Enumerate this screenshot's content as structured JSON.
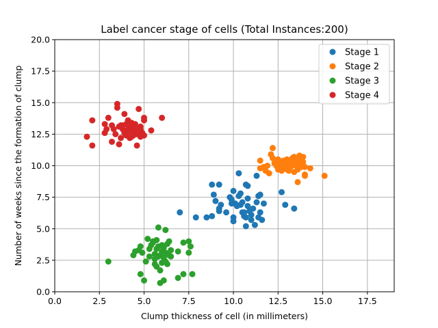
{
  "chart_data": {
    "type": "scatter",
    "title": "Label cancer stage of cells (Total Instances:200)",
    "xlabel": "Clump thickness of cell (in millimeters)",
    "ylabel": "Number of weeks since the formation of clump",
    "xlim": [
      0,
      19
    ],
    "ylim": [
      0,
      20
    ],
    "xticks": [
      0.0,
      2.5,
      5.0,
      7.5,
      10.0,
      12.5,
      15.0,
      17.5
    ],
    "xtick_labels": [
      "0.0",
      "2.5",
      "5.0",
      "7.5",
      "10.0",
      "12.5",
      "15.0",
      "17.5"
    ],
    "yticks": [
      0.0,
      2.5,
      5.0,
      7.5,
      10.0,
      12.5,
      15.0,
      17.5,
      20.0
    ],
    "ytick_labels": [
      "0.0",
      "2.5",
      "5.0",
      "7.5",
      "10.0",
      "12.5",
      "15.0",
      "17.5",
      "20.0"
    ],
    "grid": true,
    "legend_position": "top-right",
    "series": [
      {
        "name": "Stage 1",
        "color": "#1f77b4",
        "points": [
          [
            7.0,
            6.3
          ],
          [
            7.9,
            5.9
          ],
          [
            8.5,
            5.9
          ],
          [
            8.8,
            6.0
          ],
          [
            8.8,
            8.5
          ],
          [
            9.2,
            8.5
          ],
          [
            8.9,
            7.7
          ],
          [
            9.0,
            7.2
          ],
          [
            9.2,
            6.6
          ],
          [
            9.3,
            6.9
          ],
          [
            9.2,
            6.4
          ],
          [
            9.6,
            6.3
          ],
          [
            9.8,
            7.5
          ],
          [
            9.9,
            7.3
          ],
          [
            9.9,
            7.0
          ],
          [
            10.0,
            8.0
          ],
          [
            10.0,
            5.9
          ],
          [
            10.0,
            5.6
          ],
          [
            10.1,
            7.0
          ],
          [
            10.3,
            7.6
          ],
          [
            10.3,
            9.4
          ],
          [
            10.4,
            7.8
          ],
          [
            10.4,
            6.9
          ],
          [
            10.5,
            6.3
          ],
          [
            10.6,
            6.3
          ],
          [
            10.6,
            6.0
          ],
          [
            10.7,
            5.9
          ],
          [
            10.7,
            5.2
          ],
          [
            10.7,
            8.5
          ],
          [
            10.8,
            8.4
          ],
          [
            10.8,
            7.4
          ],
          [
            10.8,
            6.8
          ],
          [
            10.9,
            6.4
          ],
          [
            11.0,
            5.7
          ],
          [
            11.0,
            6.1
          ],
          [
            11.1,
            6.6
          ],
          [
            11.2,
            5.3
          ],
          [
            11.3,
            9.2
          ],
          [
            11.3,
            7.1
          ],
          [
            11.4,
            7.6
          ],
          [
            11.5,
            7.7
          ],
          [
            11.5,
            6.3
          ],
          [
            11.4,
            5.9
          ],
          [
            11.7,
            7.0
          ],
          [
            12.7,
            7.9
          ],
          [
            12.9,
            6.9
          ],
          [
            13.4,
            6.6
          ],
          [
            10.5,
            7.1
          ],
          [
            10.2,
            6.8
          ],
          [
            11.6,
            5.7
          ]
        ]
      },
      {
        "name": "Stage 2",
        "color": "#ff7f0e",
        "points": [
          [
            11.5,
            10.4
          ],
          [
            11.5,
            9.8
          ],
          [
            11.7,
            9.9
          ],
          [
            11.8,
            9.6
          ],
          [
            12.0,
            9.4
          ],
          [
            12.1,
            10.9
          ],
          [
            12.2,
            11.4
          ],
          [
            12.3,
            10.2
          ],
          [
            12.4,
            10.0
          ],
          [
            12.5,
            9.7
          ],
          [
            12.6,
            10.3
          ],
          [
            12.7,
            10.1
          ],
          [
            12.7,
            9.6
          ],
          [
            12.8,
            9.9
          ],
          [
            12.9,
            10.2
          ],
          [
            13.0,
            10.5
          ],
          [
            13.0,
            9.7
          ],
          [
            13.1,
            10.0
          ],
          [
            13.2,
            10.4
          ],
          [
            13.2,
            9.9
          ],
          [
            13.3,
            10.6
          ],
          [
            13.4,
            10.2
          ],
          [
            13.4,
            9.5
          ],
          [
            13.5,
            10.6
          ],
          [
            13.6,
            10.3
          ],
          [
            13.6,
            9.7
          ],
          [
            13.7,
            10.8
          ],
          [
            13.7,
            10.1
          ],
          [
            13.8,
            10.5
          ],
          [
            13.8,
            9.9
          ],
          [
            13.9,
            10.7
          ],
          [
            13.9,
            10.3
          ],
          [
            14.0,
            9.9
          ],
          [
            14.0,
            9.3
          ],
          [
            14.0,
            9.2
          ],
          [
            14.3,
            9.8
          ],
          [
            15.1,
            9.2
          ],
          [
            13.6,
            8.7
          ],
          [
            12.4,
            10.3
          ],
          [
            12.9,
            10.0
          ],
          [
            13.2,
            10.1
          ],
          [
            12.6,
            9.8
          ],
          [
            13.0,
            10.3
          ],
          [
            13.5,
            10.0
          ],
          [
            12.2,
            10.6
          ],
          [
            11.9,
            10.0
          ],
          [
            13.4,
            10.7
          ],
          [
            12.8,
            10.4
          ],
          [
            13.1,
            9.6
          ],
          [
            12.5,
            10.5
          ]
        ]
      },
      {
        "name": "Stage 3",
        "color": "#2ca02c",
        "points": [
          [
            3.0,
            2.4
          ],
          [
            4.4,
            2.9
          ],
          [
            4.5,
            3.2
          ],
          [
            4.7,
            3.3
          ],
          [
            4.8,
            3.6
          ],
          [
            4.8,
            1.4
          ],
          [
            4.9,
            3.1
          ],
          [
            5.0,
            0.9
          ],
          [
            5.1,
            2.4
          ],
          [
            5.2,
            4.2
          ],
          [
            5.3,
            2.8
          ],
          [
            5.3,
            3.4
          ],
          [
            5.5,
            4.0
          ],
          [
            5.5,
            3.9
          ],
          [
            5.6,
            2.2
          ],
          [
            5.6,
            3.0
          ],
          [
            5.7,
            2.0
          ],
          [
            5.7,
            3.4
          ],
          [
            5.7,
            4.1
          ],
          [
            5.8,
            5.1
          ],
          [
            5.8,
            3.6
          ],
          [
            5.8,
            2.8
          ],
          [
            5.9,
            1.7
          ],
          [
            5.9,
            0.7
          ],
          [
            6.0,
            2.3
          ],
          [
            6.0,
            3.2
          ],
          [
            6.0,
            3.7
          ],
          [
            6.1,
            0.9
          ],
          [
            6.1,
            2.7
          ],
          [
            6.2,
            4.9
          ],
          [
            6.2,
            3.1
          ],
          [
            6.3,
            2.2
          ],
          [
            6.3,
            3.8
          ],
          [
            6.4,
            4.0
          ],
          [
            6.4,
            2.9
          ],
          [
            6.5,
            2.8
          ],
          [
            6.9,
            3.2
          ],
          [
            6.9,
            1.1
          ],
          [
            7.2,
            3.9
          ],
          [
            7.2,
            1.4
          ],
          [
            7.5,
            4.0
          ],
          [
            7.5,
            3.1
          ],
          [
            7.6,
            3.6
          ],
          [
            7.7,
            1.4
          ],
          [
            5.4,
            3.7
          ],
          [
            6.1,
            3.5
          ],
          [
            5.6,
            2.6
          ],
          [
            6.2,
            2.4
          ],
          [
            5.9,
            2.9
          ],
          [
            6.5,
            3.3
          ]
        ]
      },
      {
        "name": "Stage 4",
        "color": "#d62728",
        "points": [
          [
            1.8,
            12.3
          ],
          [
            2.1,
            13.6
          ],
          [
            2.1,
            11.6
          ],
          [
            2.8,
            13.3
          ],
          [
            2.8,
            12.6
          ],
          [
            2.9,
            12.9
          ],
          [
            3.0,
            13.8
          ],
          [
            3.2,
            13.2
          ],
          [
            3.2,
            11.9
          ],
          [
            3.3,
            12.9
          ],
          [
            3.4,
            12.5
          ],
          [
            3.5,
            14.9
          ],
          [
            3.5,
            14.6
          ],
          [
            3.6,
            13.1
          ],
          [
            3.6,
            11.7
          ],
          [
            3.7,
            12.2
          ],
          [
            3.8,
            12.9
          ],
          [
            3.8,
            13.2
          ],
          [
            3.9,
            14.1
          ],
          [
            3.9,
            12.8
          ],
          [
            4.0,
            13.3
          ],
          [
            4.0,
            12.4
          ],
          [
            4.1,
            13.6
          ],
          [
            4.1,
            12.9
          ],
          [
            4.2,
            12.2
          ],
          [
            4.3,
            13.4
          ],
          [
            4.3,
            12.7
          ],
          [
            4.4,
            13.1
          ],
          [
            4.4,
            12.4
          ],
          [
            4.5,
            12.8
          ],
          [
            4.6,
            13.0
          ],
          [
            4.6,
            11.6
          ],
          [
            4.7,
            14.5
          ],
          [
            4.7,
            12.6
          ],
          [
            4.8,
            13.1
          ],
          [
            4.8,
            12.3
          ],
          [
            5.0,
            13.8
          ],
          [
            5.0,
            13.6
          ],
          [
            5.0,
            12.4
          ],
          [
            5.4,
            12.8
          ],
          [
            6.0,
            13.8
          ],
          [
            4.2,
            13.0
          ],
          [
            3.9,
            12.6
          ],
          [
            4.5,
            13.3
          ],
          [
            4.8,
            12.9
          ],
          [
            4.1,
            12.7
          ],
          [
            3.7,
            13.2
          ],
          [
            4.6,
            12.5
          ],
          [
            4.9,
            12.6
          ],
          [
            4.3,
            12.3
          ]
        ]
      }
    ]
  }
}
